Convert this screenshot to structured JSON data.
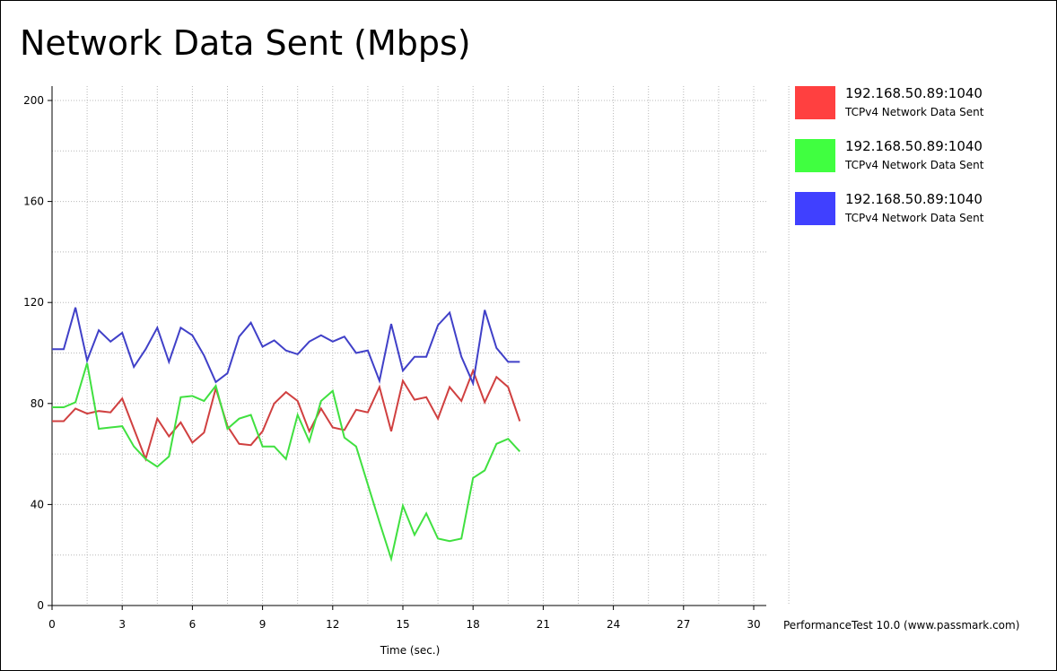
{
  "chart_data": {
    "type": "line",
    "title": "Network Data Sent (Mbps)",
    "xlabel": "Time (sec.)",
    "ylabel": "",
    "xlim": [
      0,
      30
    ],
    "ylim": [
      0,
      200
    ],
    "x_ticks": [
      0,
      3,
      6,
      9,
      12,
      15,
      18,
      21,
      24,
      27,
      30
    ],
    "y_ticks": [
      0,
      40,
      80,
      120,
      160,
      200
    ],
    "grid": true,
    "legend_position": "right",
    "x": [
      0,
      0.5,
      1,
      1.5,
      2,
      2.5,
      3,
      3.5,
      4,
      4.5,
      5,
      5.5,
      6,
      6.5,
      7,
      7.5,
      8,
      8.5,
      9,
      9.5,
      10,
      10.5,
      11,
      11.5,
      12,
      12.5,
      13,
      13.5,
      14,
      14.5,
      15,
      15.5,
      16,
      16.5,
      17,
      17.5,
      18,
      18.5,
      19,
      19.5,
      20
    ],
    "series": [
      {
        "name": "192.168.50.89:1040",
        "description": "TCPv4 Network Data Sent",
        "color": "#ff4040",
        "line_color": "#d04040",
        "values": [
          73,
          73,
          78,
          76,
          77,
          76.5,
          82,
          70,
          58,
          74,
          67,
          72.5,
          64.5,
          68.5,
          86,
          71,
          64,
          63.5,
          69,
          80,
          84.5,
          81,
          69,
          78,
          70.5,
          69.5,
          77.5,
          76.5,
          86.5,
          69,
          89,
          81.5,
          82.5,
          74,
          86.5,
          81,
          93,
          80.5,
          90.5,
          86.5,
          73
        ]
      },
      {
        "name": "192.168.50.89:1040",
        "description": "TCPv4 Network Data Sent",
        "color": "#40ff40",
        "line_color": "#40e040",
        "values": [
          78.5,
          78.5,
          80.5,
          96,
          70,
          70.5,
          71,
          63,
          58,
          55,
          59,
          82.5,
          83,
          81,
          87,
          70,
          74,
          75.5,
          63,
          63,
          58,
          75.5,
          65,
          81,
          85,
          66.5,
          63,
          48,
          33,
          18.5,
          39.5,
          28,
          36.5,
          26.5,
          25.5,
          26.5,
          50.5,
          53.5,
          64,
          66,
          61
        ]
      },
      {
        "name": "192.168.50.89:1040",
        "description": "TCPv4 Network Data Sent",
        "color": "#4040ff",
        "line_color": "#4040c8",
        "values": [
          101.5,
          101.5,
          118,
          97,
          109,
          104.5,
          108,
          94.5,
          101.5,
          110,
          96.5,
          110,
          107,
          99,
          88.5,
          92,
          106.5,
          112,
          102.5,
          105,
          101,
          99.5,
          104.5,
          107,
          104.5,
          106.5,
          100,
          101,
          89,
          111.5,
          93,
          98.5,
          98.5,
          111,
          116,
          98.5,
          88,
          117,
          102,
          96.5,
          96.5
        ]
      }
    ]
  },
  "footer": "PerformanceTest 10.0 (www.passmark.com)"
}
